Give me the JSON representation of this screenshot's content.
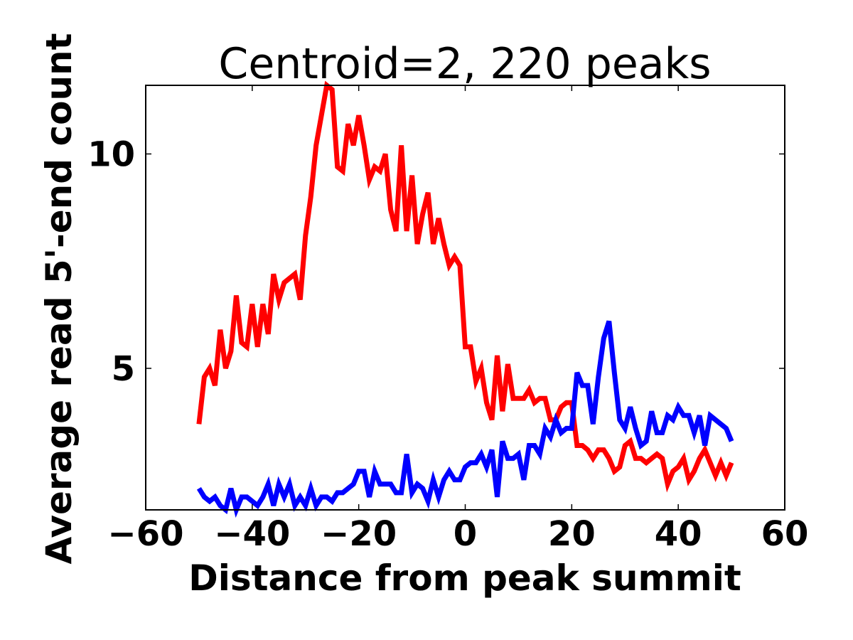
{
  "chart_data": {
    "type": "line",
    "title": "Centroid=2, 220 peaks",
    "xlabel": "Distance from peak summit",
    "ylabel": "Average read 5'-end count",
    "xlim": [
      -60,
      60
    ],
    "ylim": [
      1.7,
      11.6
    ],
    "xticks": [
      -60,
      -40,
      -20,
      0,
      20,
      40,
      60
    ],
    "xtick_labels": [
      "−60",
      "−40",
      "−20",
      "0",
      "20",
      "40",
      "60"
    ],
    "yticks": [
      5,
      10
    ],
    "ytick_labels": [
      "5",
      "10"
    ],
    "grid": false,
    "legend": "none",
    "x": [
      -50,
      -49,
      -48,
      -47,
      -46,
      -45,
      -44,
      -43,
      -42,
      -41,
      -40,
      -39,
      -38,
      -37,
      -36,
      -35,
      -34,
      -33,
      -32,
      -31,
      -30,
      -29,
      -28,
      -27,
      -26,
      -25,
      -24,
      -23,
      -22,
      -21,
      -20,
      -19,
      -18,
      -17,
      -16,
      -15,
      -14,
      -13,
      -12,
      -11,
      -10,
      -9,
      -8,
      -7,
      -6,
      -5,
      -4,
      -3,
      -2,
      -1,
      0,
      1,
      2,
      3,
      4,
      5,
      6,
      7,
      8,
      9,
      10,
      11,
      12,
      13,
      14,
      15,
      16,
      17,
      18,
      19,
      20,
      21,
      22,
      23,
      24,
      25,
      26,
      27,
      28,
      29,
      30,
      31,
      32,
      33,
      34,
      35,
      36,
      37,
      38,
      39,
      40,
      41,
      42,
      43,
      44,
      45,
      46,
      47,
      48,
      49,
      50
    ],
    "series": [
      {
        "color": "#ff0000",
        "values": [
          3.7,
          4.8,
          5.0,
          4.6,
          5.9,
          5.0,
          5.4,
          6.7,
          5.6,
          5.5,
          6.5,
          5.5,
          6.5,
          5.8,
          7.2,
          6.6,
          7.0,
          7.1,
          7.2,
          6.6,
          8.1,
          9.0,
          10.2,
          10.9,
          11.6,
          11.5,
          9.7,
          9.6,
          10.7,
          10.2,
          10.9,
          10.2,
          9.4,
          9.7,
          9.6,
          10.0,
          8.7,
          8.2,
          10.2,
          8.2,
          9.5,
          7.9,
          8.6,
          9.1,
          7.9,
          8.5,
          7.9,
          7.4,
          7.6,
          7.4,
          5.5,
          5.5,
          4.7,
          5.0,
          4.2,
          3.8,
          5.3,
          4.0,
          5.1,
          4.3,
          4.3,
          4.3,
          4.5,
          4.2,
          4.3,
          4.3,
          3.8,
          3.8,
          4.1,
          4.2,
          4.2,
          3.2,
          3.2,
          3.1,
          2.9,
          3.1,
          3.1,
          2.9,
          2.6,
          2.7,
          3.2,
          3.3,
          2.9,
          2.9,
          2.8,
          2.9,
          3.0,
          2.9,
          2.3,
          2.6,
          2.7,
          2.9,
          2.4,
          2.6,
          2.9,
          3.1,
          2.8,
          2.5,
          2.8,
          2.5,
          2.8
        ]
      },
      {
        "color": "#0000ff",
        "values": [
          2.2,
          2.0,
          1.9,
          2.0,
          1.8,
          1.7,
          2.2,
          1.7,
          2.0,
          2.0,
          1.9,
          1.8,
          2.0,
          2.3,
          1.8,
          2.3,
          2.0,
          2.3,
          1.8,
          2.0,
          1.8,
          2.2,
          1.8,
          2.0,
          2.0,
          1.9,
          2.1,
          2.1,
          2.2,
          2.3,
          2.6,
          2.6,
          2.0,
          2.6,
          2.3,
          2.3,
          2.3,
          2.1,
          2.1,
          3.0,
          2.1,
          2.3,
          2.2,
          1.9,
          2.4,
          2.0,
          2.4,
          2.6,
          2.4,
          2.4,
          2.7,
          2.8,
          2.8,
          3.0,
          2.7,
          3.1,
          2.0,
          3.3,
          2.9,
          2.9,
          3.0,
          2.4,
          3.2,
          3.2,
          3.0,
          3.6,
          3.4,
          3.8,
          3.5,
          3.6,
          3.6,
          4.9,
          4.6,
          4.6,
          3.7,
          4.8,
          5.7,
          6.1,
          4.9,
          3.8,
          3.6,
          4.1,
          3.6,
          3.2,
          3.3,
          4.0,
          3.5,
          3.5,
          3.9,
          3.8,
          4.1,
          3.9,
          3.9,
          3.5,
          3.9,
          3.2,
          3.9,
          3.8,
          3.7,
          3.6,
          3.3
        ]
      }
    ]
  }
}
